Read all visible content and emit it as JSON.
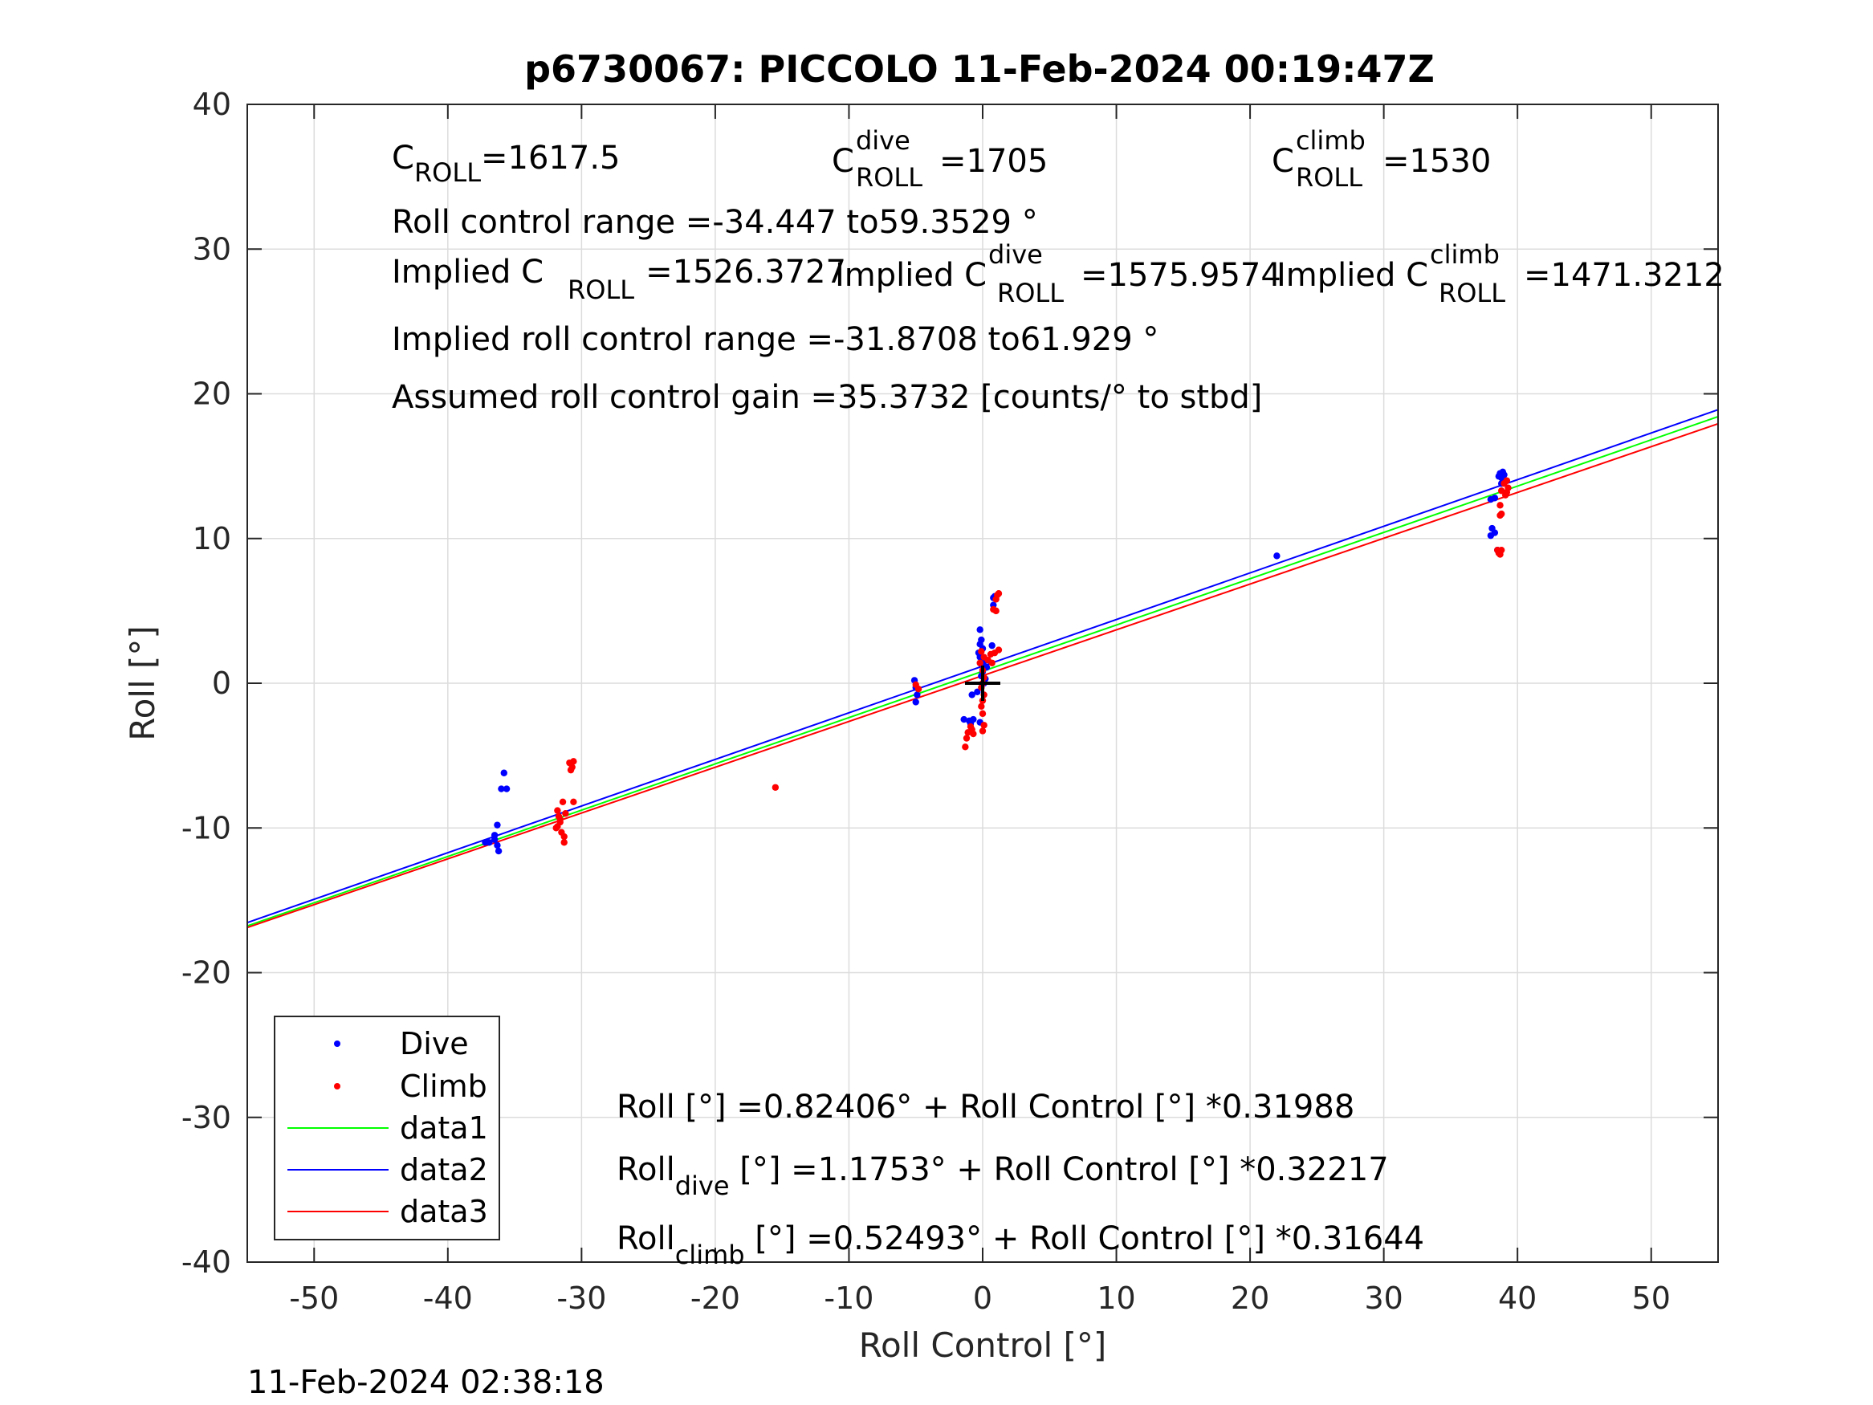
{
  "chart_data": {
    "type": "scatter",
    "title": "p6730067: PICCOLO 11-Feb-2024 00:19:47Z",
    "xlabel": "Roll Control [°]",
    "ylabel": "Roll [°]",
    "xlim": [
      -55,
      55
    ],
    "ylim": [
      -40,
      40
    ],
    "xticks": [
      -50,
      -40,
      -30,
      -20,
      -10,
      0,
      10,
      20,
      30,
      40,
      50
    ],
    "yticks": [
      -40,
      -30,
      -20,
      -10,
      0,
      10,
      20,
      30,
      40
    ],
    "grid": true,
    "legend_position": "bottom-left",
    "timestamp": "11-Feb-2024 02:38:18",
    "series": [
      {
        "name": "Dive",
        "kind": "scatter",
        "color": "#0000ff",
        "points": [
          [
            -36.9,
            -11.0
          ],
          [
            -36.5,
            -10.8
          ],
          [
            -36.3,
            -11.2
          ],
          [
            -36.2,
            -11.6
          ],
          [
            -36.5,
            -10.5
          ],
          [
            -36.3,
            -9.8
          ],
          [
            -36.0,
            -7.3
          ],
          [
            -35.6,
            -7.3
          ],
          [
            -35.8,
            -6.2
          ],
          [
            -37.2,
            -11.0
          ],
          [
            -5.1,
            0.2
          ],
          [
            -5.0,
            -0.3
          ],
          [
            -4.9,
            -0.8
          ],
          [
            -5.0,
            -1.3
          ],
          [
            -1.4,
            -2.5
          ],
          [
            -1.0,
            -2.6
          ],
          [
            -0.7,
            -2.5
          ],
          [
            -0.9,
            -2.8
          ],
          [
            -0.8,
            -0.8
          ],
          [
            -0.4,
            -0.6
          ],
          [
            -0.2,
            -2.7
          ],
          [
            -0.2,
            3.7
          ],
          [
            -0.1,
            3.0
          ],
          [
            -0.2,
            2.7
          ],
          [
            0.0,
            2.4
          ],
          [
            -0.3,
            2.1
          ],
          [
            -0.2,
            1.8
          ],
          [
            0.1,
            1.5
          ],
          [
            -0.1,
            1.3
          ],
          [
            0.3,
            1.1
          ],
          [
            0.0,
            0.8
          ],
          [
            -0.1,
            0.5
          ],
          [
            0.2,
            0.3
          ],
          [
            0.1,
            0.0
          ],
          [
            0.8,
            5.9
          ],
          [
            0.9,
            6.0
          ],
          [
            0.8,
            5.4
          ],
          [
            0.7,
            2.6
          ],
          [
            22.0,
            8.8
          ],
          [
            38.0,
            12.7
          ],
          [
            38.3,
            12.8
          ],
          [
            38.1,
            10.7
          ],
          [
            38.3,
            10.4
          ],
          [
            38.0,
            10.2
          ],
          [
            38.5,
            9.2
          ],
          [
            38.7,
            14.5
          ],
          [
            38.8,
            14.2
          ],
          [
            39.0,
            14.4
          ],
          [
            38.9,
            14.6
          ],
          [
            39.1,
            14.0
          ],
          [
            38.8,
            13.8
          ],
          [
            38.6,
            14.3
          ]
        ]
      },
      {
        "name": "Climb",
        "kind": "scatter",
        "color": "#ff0000",
        "points": [
          [
            -31.8,
            -8.8
          ],
          [
            -31.7,
            -9.2
          ],
          [
            -31.6,
            -9.6
          ],
          [
            -31.9,
            -10.0
          ],
          [
            -31.5,
            -10.3
          ],
          [
            -31.3,
            -10.6
          ],
          [
            -31.3,
            -11.0
          ],
          [
            -31.4,
            -8.2
          ],
          [
            -31.6,
            -9.4
          ],
          [
            -31.8,
            -9.9
          ],
          [
            -31.2,
            -9.0
          ],
          [
            -30.9,
            -5.5
          ],
          [
            -30.7,
            -5.8
          ],
          [
            -30.6,
            -5.4
          ],
          [
            -30.8,
            -6.0
          ],
          [
            -30.6,
            -8.2
          ],
          [
            -15.5,
            -7.2
          ],
          [
            -5.0,
            -0.1
          ],
          [
            -4.8,
            -0.4
          ],
          [
            -1.3,
            -4.4
          ],
          [
            -1.2,
            -3.8
          ],
          [
            -1.1,
            -3.4
          ],
          [
            -0.8,
            -3.2
          ],
          [
            -0.7,
            -3.5
          ],
          [
            -0.9,
            -3.0
          ],
          [
            0.0,
            -3.3
          ],
          [
            0.1,
            -2.9
          ],
          [
            0.0,
            -2.1
          ],
          [
            -0.1,
            -1.6
          ],
          [
            0.0,
            -1.2
          ],
          [
            0.1,
            -0.8
          ],
          [
            -0.1,
            -0.3
          ],
          [
            0.0,
            0.0
          ],
          [
            0.1,
            0.4
          ],
          [
            0.0,
            0.9
          ],
          [
            -0.2,
            1.4
          ],
          [
            0.1,
            1.8
          ],
          [
            -0.1,
            2.2
          ],
          [
            0.4,
            1.6
          ],
          [
            0.6,
            2.0
          ],
          [
            0.9,
            2.1
          ],
          [
            1.2,
            2.3
          ],
          [
            0.7,
            1.4
          ],
          [
            0.8,
            5.1
          ],
          [
            1.0,
            5.0
          ],
          [
            1.1,
            6.1
          ],
          [
            1.2,
            6.2
          ],
          [
            1.0,
            5.8
          ],
          [
            38.5,
            9.2
          ],
          [
            38.7,
            8.9
          ],
          [
            38.6,
            9.0
          ],
          [
            38.8,
            9.2
          ],
          [
            38.7,
            11.6
          ],
          [
            38.8,
            11.7
          ],
          [
            38.7,
            12.3
          ],
          [
            38.8,
            13.3
          ],
          [
            39.1,
            13.0
          ],
          [
            39.2,
            13.2
          ],
          [
            39.3,
            13.5
          ],
          [
            39.2,
            14.0
          ],
          [
            39.0,
            13.8
          ]
        ]
      },
      {
        "name": "data1",
        "kind": "line",
        "color": "#00ff00",
        "points": [
          [
            -55,
            -16.77
          ],
          [
            55,
            18.42
          ]
        ]
      },
      {
        "name": "data2",
        "kind": "line",
        "color": "#0000ff",
        "points": [
          [
            -55,
            -16.54
          ],
          [
            55,
            18.9
          ]
        ]
      },
      {
        "name": "data3",
        "kind": "line",
        "color": "#ff0000",
        "points": [
          [
            -55,
            -16.88
          ],
          [
            55,
            17.93
          ]
        ]
      }
    ],
    "marker": {
      "x": 0,
      "y": 0,
      "symbol": "+",
      "color": "#000000"
    },
    "annotations": {
      "c_roll": {
        "base": "C",
        "sub": "ROLL",
        "sup": "",
        "value": "=1617.5"
      },
      "c_roll_dive": {
        "base": "C",
        "sub": "ROLL",
        "sup": "dive",
        "value": "=1705"
      },
      "c_roll_climb": {
        "base": "C",
        "sub": "ROLL",
        "sup": "climb",
        "value": "=1530"
      },
      "roll_control_range": "Roll control range =-34.447 to59.3529 °",
      "implied_c_roll": {
        "base": "Implied C",
        "sub": "ROLL",
        "sup": "",
        "value": "=1526.3727"
      },
      "implied_c_roll_dive": {
        "base": "Implied C",
        "sub": "ROLL",
        "sup": "dive",
        "value": "=1575.9574"
      },
      "implied_c_roll_climb": {
        "base": "Implied C",
        "sub": "ROLL",
        "sup": "climb",
        "value": "=1471.3212"
      },
      "implied_range": "Implied roll control range =-31.8708 to61.929 °",
      "assumed_gain": "Assumed roll control gain =35.3732 [counts/° to stbd]",
      "fit_all": {
        "base": "Roll",
        "sub": "",
        "rest": " [°] =0.82406° + Roll Control [°] *0.31988"
      },
      "fit_dive": {
        "base": "Roll",
        "sub": "dive",
        "rest": " [°] =1.1753° + Roll Control [°] *0.32217"
      },
      "fit_climb": {
        "base": "Roll",
        "sub": "climb",
        "rest": " [°] =0.52493° + Roll Control [°] *0.31644"
      }
    }
  }
}
